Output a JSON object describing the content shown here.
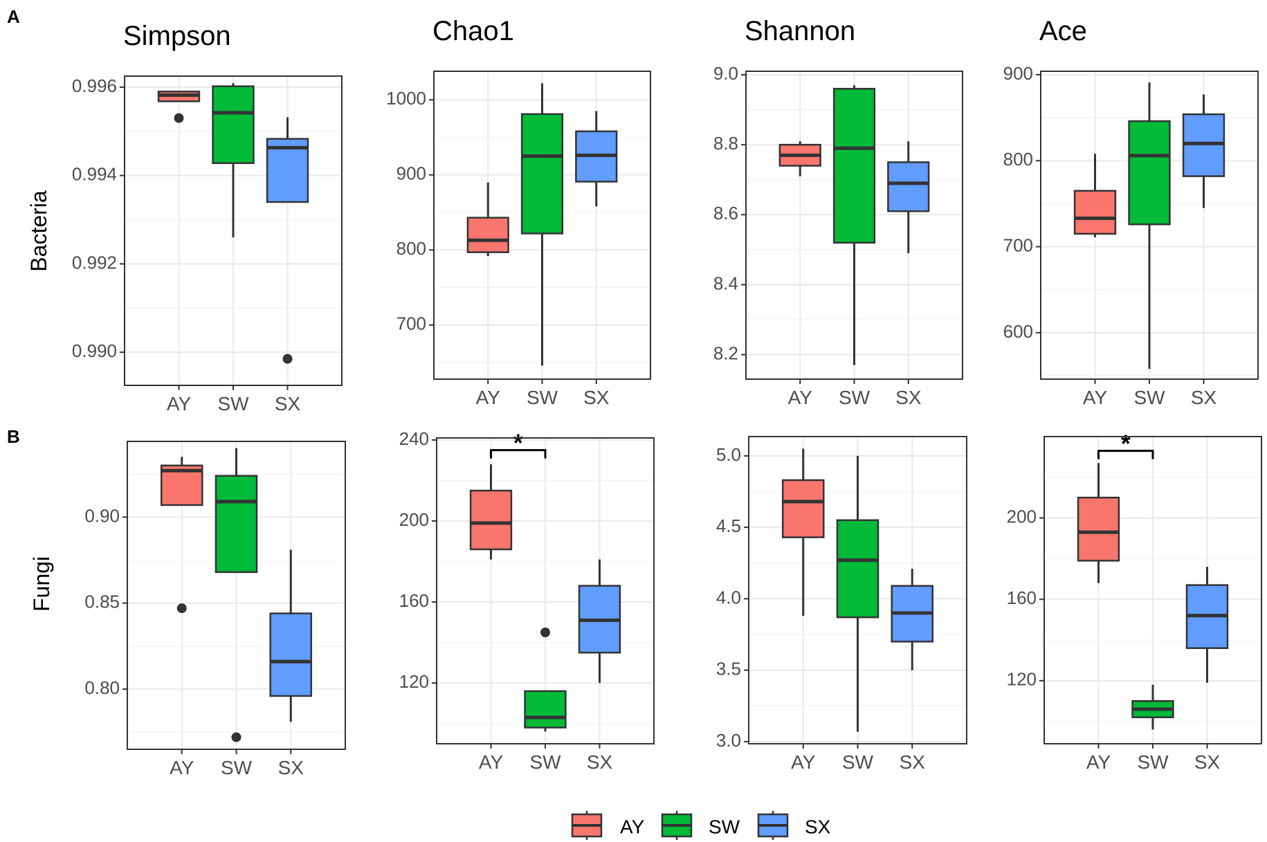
{
  "figure": {
    "section_labels": [
      "A",
      "B"
    ],
    "row_labels": [
      "Bacteria",
      "Fungi"
    ],
    "legend": [
      {
        "label": "AY",
        "color": "#F8766D"
      },
      {
        "label": "SW",
        "color": "#00BA38"
      },
      {
        "label": "SX",
        "color": "#619CFF"
      }
    ]
  },
  "chart_data": [
    {
      "type": "box",
      "row": "Bacteria",
      "title": "Simpson",
      "categories": [
        "AY",
        "SW",
        "SX"
      ],
      "ylim": [
        0.98925,
        0.99625
      ],
      "yticks": [
        0.99,
        0.992,
        0.994,
        0.996
      ],
      "ytick_labels": [
        "0.990",
        "0.992",
        "0.994",
        "0.996"
      ],
      "boxes": [
        {
          "category": "AY",
          "whisker_low": 0.99568,
          "q1": 0.99568,
          "median": 0.99582,
          "q3": 0.9959,
          "whisker_high": 0.99592,
          "outliers": [
            0.9953
          ]
        },
        {
          "category": "SW",
          "whisker_low": 0.9926,
          "q1": 0.99428,
          "median": 0.99542,
          "q3": 0.99602,
          "whisker_high": 0.99609,
          "outliers": []
        },
        {
          "category": "SX",
          "whisker_low": 0.9934,
          "q1": 0.9934,
          "median": 0.99463,
          "q3": 0.99483,
          "whisker_high": 0.99532,
          "outliers": [
            0.98985
          ]
        }
      ],
      "significance": []
    },
    {
      "type": "box",
      "row": "Bacteria",
      "title": "Chao1",
      "categories": [
        "AY",
        "SW",
        "SX"
      ],
      "ylim": [
        628,
        1038
      ],
      "yticks": [
        700,
        800,
        900,
        1000
      ],
      "ytick_labels": [
        "700",
        "800",
        "900",
        "1000"
      ],
      "boxes": [
        {
          "category": "AY",
          "whisker_low": 792,
          "q1": 797,
          "median": 813,
          "q3": 843,
          "whisker_high": 890,
          "outliers": []
        },
        {
          "category": "SW",
          "whisker_low": 646,
          "q1": 822,
          "median": 925,
          "q3": 981,
          "whisker_high": 1022,
          "outliers": []
        },
        {
          "category": "SX",
          "whisker_low": 858,
          "q1": 891,
          "median": 926,
          "q3": 958,
          "whisker_high": 985,
          "outliers": []
        }
      ],
      "significance": []
    },
    {
      "type": "box",
      "row": "Bacteria",
      "title": "Shannon",
      "categories": [
        "AY",
        "SW",
        "SX"
      ],
      "ylim": [
        8.13,
        9.01
      ],
      "yticks": [
        8.2,
        8.4,
        8.6,
        8.8,
        9.0
      ],
      "ytick_labels": [
        "8.2",
        "8.4",
        "8.6",
        "8.8",
        "9.0"
      ],
      "boxes": [
        {
          "category": "AY",
          "whisker_low": 8.71,
          "q1": 8.74,
          "median": 8.77,
          "q3": 8.8,
          "whisker_high": 8.81,
          "outliers": []
        },
        {
          "category": "SW",
          "whisker_low": 8.17,
          "q1": 8.52,
          "median": 8.79,
          "q3": 8.96,
          "whisker_high": 8.97,
          "outliers": []
        },
        {
          "category": "SX",
          "whisker_low": 8.49,
          "q1": 8.61,
          "median": 8.69,
          "q3": 8.75,
          "whisker_high": 8.81,
          "outliers": []
        }
      ],
      "significance": []
    },
    {
      "type": "box",
      "row": "Bacteria",
      "title": "Ace",
      "categories": [
        "AY",
        "SW",
        "SX"
      ],
      "ylim": [
        546,
        904
      ],
      "yticks": [
        600,
        700,
        800,
        900
      ],
      "ytick_labels": [
        "600",
        "700",
        "800",
        "900"
      ],
      "boxes": [
        {
          "category": "AY",
          "whisker_low": 711,
          "q1": 715,
          "median": 733,
          "q3": 765,
          "whisker_high": 808,
          "outliers": []
        },
        {
          "category": "SW",
          "whisker_low": 558,
          "q1": 726,
          "median": 806,
          "q3": 846,
          "whisker_high": 891,
          "outliers": []
        },
        {
          "category": "SX",
          "whisker_low": 745,
          "q1": 782,
          "median": 820,
          "q3": 854,
          "whisker_high": 877,
          "outliers": []
        }
      ],
      "significance": []
    },
    {
      "type": "box",
      "row": "Fungi",
      "title": "",
      "categories": [
        "AY",
        "SW",
        "SX"
      ],
      "ylim": [
        0.765,
        0.944
      ],
      "yticks": [
        0.8,
        0.85,
        0.9
      ],
      "ytick_labels": [
        "0.80",
        "0.85",
        "0.90"
      ],
      "boxes": [
        {
          "category": "AY",
          "whisker_low": 0.907,
          "q1": 0.907,
          "median": 0.927,
          "q3": 0.93,
          "whisker_high": 0.935,
          "outliers": [
            0.847
          ]
        },
        {
          "category": "SW",
          "whisker_low": 0.868,
          "q1": 0.868,
          "median": 0.909,
          "q3": 0.924,
          "whisker_high": 0.94,
          "outliers": [
            0.772
          ]
        },
        {
          "category": "SX",
          "whisker_low": 0.781,
          "q1": 0.796,
          "median": 0.816,
          "q3": 0.844,
          "whisker_high": 0.881,
          "outliers": []
        }
      ],
      "significance": []
    },
    {
      "type": "box",
      "row": "Fungi",
      "title": "",
      "categories": [
        "AY",
        "SW",
        "SX"
      ],
      "ylim": [
        90,
        241
      ],
      "yticks": [
        120,
        160,
        200,
        240
      ],
      "ytick_labels": [
        "120",
        "160",
        "200",
        "240"
      ],
      "boxes": [
        {
          "category": "AY",
          "whisker_low": 181,
          "q1": 186,
          "median": 199,
          "q3": 215,
          "whisker_high": 228,
          "outliers": []
        },
        {
          "category": "SW",
          "whisker_low": 96,
          "q1": 98,
          "median": 103,
          "q3": 116,
          "whisker_high": 116,
          "outliers": [
            145
          ]
        },
        {
          "category": "SX",
          "whisker_low": 120,
          "q1": 135,
          "median": 151,
          "q3": 168,
          "whisker_high": 181,
          "outliers": []
        }
      ],
      "significance": [
        {
          "from": "AY",
          "to": "SW",
          "label": "*",
          "y": 235
        }
      ]
    },
    {
      "type": "box",
      "row": "Fungi",
      "title": "",
      "categories": [
        "AY",
        "SW",
        "SX"
      ],
      "ylim": [
        2.985,
        5.135
      ],
      "yticks": [
        3.0,
        3.5,
        4.0,
        4.5,
        5.0
      ],
      "ytick_labels": [
        "3.0",
        "3.5",
        "4.0",
        "4.5",
        "5.0"
      ],
      "boxes": [
        {
          "category": "AY",
          "whisker_low": 3.88,
          "q1": 4.43,
          "median": 4.68,
          "q3": 4.83,
          "whisker_high": 5.05,
          "outliers": []
        },
        {
          "category": "SW",
          "whisker_low": 3.07,
          "q1": 3.87,
          "median": 4.27,
          "q3": 4.55,
          "whisker_high": 5.0,
          "outliers": []
        },
        {
          "category": "SX",
          "whisker_low": 3.5,
          "q1": 3.7,
          "median": 3.9,
          "q3": 4.09,
          "whisker_high": 4.21,
          "outliers": []
        }
      ],
      "significance": []
    },
    {
      "type": "box",
      "row": "Fungi",
      "title": "",
      "categories": [
        "AY",
        "SW",
        "SX"
      ],
      "ylim": [
        89,
        240
      ],
      "yticks": [
        120,
        160,
        200
      ],
      "ytick_labels": [
        "120",
        "160",
        "200"
      ],
      "boxes": [
        {
          "category": "AY",
          "whisker_low": 168,
          "q1": 179,
          "median": 193,
          "q3": 210,
          "whisker_high": 227,
          "outliers": []
        },
        {
          "category": "SW",
          "whisker_low": 96,
          "q1": 102,
          "median": 106,
          "q3": 110,
          "whisker_high": 118,
          "outliers": []
        },
        {
          "category": "SX",
          "whisker_low": 119,
          "q1": 136,
          "median": 152,
          "q3": 167,
          "whisker_high": 176,
          "outliers": []
        }
      ],
      "significance": [
        {
          "from": "AY",
          "to": "SW",
          "label": "*",
          "y": 233
        }
      ]
    }
  ]
}
